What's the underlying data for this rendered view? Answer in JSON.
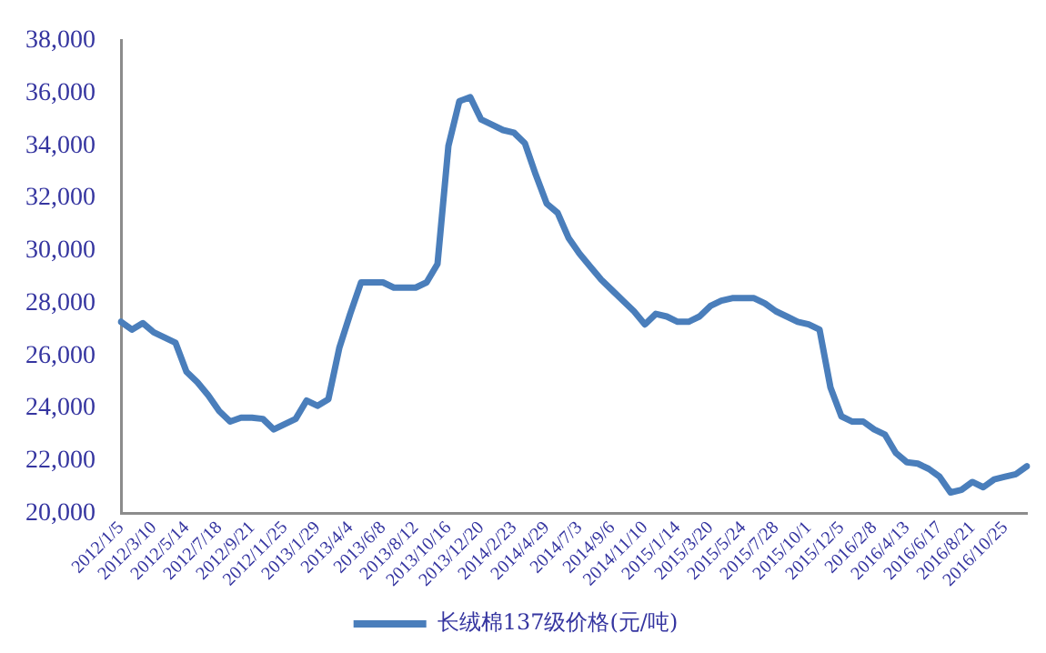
{
  "chart_data": {
    "type": "line",
    "categories": [
      "2012/1/5",
      null,
      null,
      "2012/3/10",
      null,
      null,
      "2012/5/14",
      null,
      null,
      "2012/7/18",
      null,
      null,
      "2012/9/21",
      null,
      null,
      "2012/11/25",
      null,
      null,
      "2013/1/29",
      null,
      null,
      "2013/4/4",
      null,
      null,
      "2013/6/8",
      null,
      null,
      "2013/8/12",
      null,
      null,
      "2013/10/16",
      null,
      null,
      "2013/12/20",
      null,
      null,
      "2014/2/23",
      null,
      null,
      "2014/4/29",
      null,
      null,
      "2014/7/3",
      null,
      null,
      "2014/9/6",
      null,
      null,
      "2014/11/10",
      null,
      null,
      "2015/1/14",
      null,
      null,
      "2015/3/20",
      null,
      null,
      "2015/5/24",
      null,
      null,
      "2015/7/28",
      null,
      null,
      "2015/10/1",
      null,
      null,
      "2015/12/5",
      null,
      null,
      "2016/2/8",
      null,
      null,
      "2016/4/13",
      null,
      null,
      "2016/6/17",
      null,
      null,
      "2016/8/21",
      null,
      null,
      "2016/10/25",
      null,
      null
    ],
    "series": [
      {
        "name": "长绒棉137级价格(元/吨)",
        "color": "#4a7ebb",
        "values": [
          27300,
          27000,
          27250,
          26900,
          26700,
          26500,
          25400,
          25000,
          24500,
          23900,
          23500,
          23650,
          23650,
          23600,
          23200,
          23400,
          23600,
          24300,
          24100,
          24350,
          26300,
          27600,
          28800,
          28800,
          28800,
          28600,
          28600,
          28600,
          28800,
          29500,
          34000,
          35700,
          35850,
          35000,
          34800,
          34600,
          34500,
          34100,
          32900,
          31800,
          31450,
          30500,
          29900,
          29400,
          28900,
          28500,
          28100,
          27700,
          27200,
          27600,
          27500,
          27300,
          27300,
          27500,
          27900,
          28100,
          28200,
          28200,
          28200,
          28000,
          27700,
          27500,
          27300,
          27200,
          27000,
          24800,
          23700,
          23500,
          23500,
          23200,
          23000,
          22300,
          21950,
          21900,
          21700,
          21400,
          20800,
          20900,
          21200,
          21000,
          21300,
          21400,
          21500,
          21800
        ]
      }
    ],
    "ylim": [
      20000,
      38000
    ],
    "yticks": [
      {
        "value": 20000,
        "label": "20,000"
      },
      {
        "value": 22000,
        "label": "22,000"
      },
      {
        "value": 24000,
        "label": "24,000"
      },
      {
        "value": 26000,
        "label": "26,000"
      },
      {
        "value": 28000,
        "label": "28,000"
      },
      {
        "value": 30000,
        "label": "30,000"
      },
      {
        "value": 32000,
        "label": "32,000"
      },
      {
        "value": 34000,
        "label": "34,000"
      },
      {
        "value": 36000,
        "label": "36,000"
      },
      {
        "value": 38000,
        "label": "38,000"
      }
    ],
    "grid": false,
    "legend": "bottom",
    "line_style": "solid",
    "marker": "none"
  }
}
